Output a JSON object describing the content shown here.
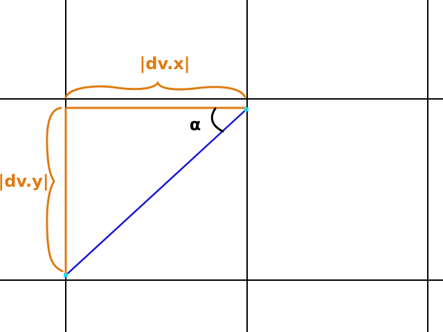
{
  "diagram": {
    "labels": {
      "dx": "|dv.x|",
      "dy": "|dv.y|",
      "angle": "α"
    },
    "colors": {
      "grid": "#000000",
      "brace": "#e07a10",
      "edge": "#e07a10",
      "hypotenuse": "#1515d4",
      "endpoint": "#22d8e8",
      "angle_mark": "#000000"
    }
  }
}
